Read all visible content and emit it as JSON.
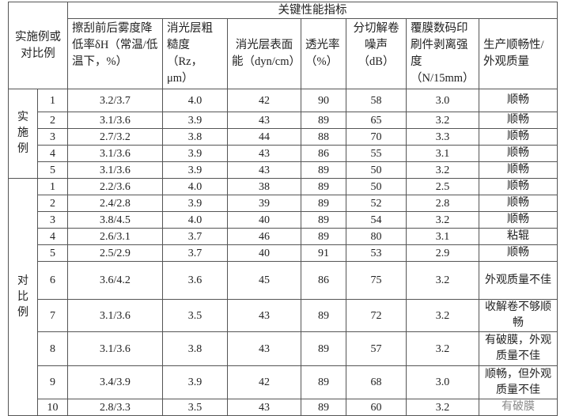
{
  "table": {
    "corner_header": "实施例或对比例",
    "group_header": "关键性能指标",
    "columns": [
      "擦刮前后雾度降低率δH（常温/低温下，%）",
      "消光层粗糙度（Rz，μm）",
      "消光层表面能（dyn/cm）",
      "透光率（%）",
      "分切解卷噪声（dB）",
      "覆膜数码印刷件剥离强度（N/15mm）",
      "生产顺畅性/外观质量"
    ],
    "groups": [
      {
        "label": "实施例",
        "rows": [
          {
            "no": "1",
            "haze": "3.2/3.7",
            "rz": "4.0",
            "energy": "42",
            "trans": "90",
            "noise": "58",
            "peel": "3.0",
            "quality": "顺畅"
          },
          {
            "no": "2",
            "haze": "3.1/3.6",
            "rz": "3.9",
            "energy": "43",
            "trans": "89",
            "noise": "65",
            "peel": "3.2",
            "quality": "顺畅"
          },
          {
            "no": "3",
            "haze": "2.7/3.2",
            "rz": "3.8",
            "energy": "44",
            "trans": "88",
            "noise": "70",
            "peel": "3.3",
            "quality": "顺畅"
          },
          {
            "no": "4",
            "haze": "3.1/3.6",
            "rz": "3.9",
            "energy": "43",
            "trans": "86",
            "noise": "55",
            "peel": "3.1",
            "quality": "顺畅"
          },
          {
            "no": "5",
            "haze": "3.1/3.6",
            "rz": "3.9",
            "energy": "43",
            "trans": "89",
            "noise": "50",
            "peel": "3.2",
            "quality": "顺畅"
          }
        ]
      },
      {
        "label": "对比例",
        "rows": [
          {
            "no": "1",
            "haze": "2.2/3.6",
            "rz": "4.0",
            "energy": "38",
            "trans": "89",
            "noise": "50",
            "peel": "2.5",
            "quality": "顺畅"
          },
          {
            "no": "2",
            "haze": "2.4/2.8",
            "rz": "3.9",
            "energy": "39",
            "trans": "89",
            "noise": "52",
            "peel": "2.8",
            "quality": "顺畅"
          },
          {
            "no": "3",
            "haze": "3.8/4.5",
            "rz": "4.0",
            "energy": "40",
            "trans": "89",
            "noise": "54",
            "peel": "3.2",
            "quality": "顺畅"
          },
          {
            "no": "4",
            "haze": "2.6/3.1",
            "rz": "3.7",
            "energy": "46",
            "trans": "89",
            "noise": "80",
            "peel": "3.1",
            "quality": "粘辊"
          },
          {
            "no": "5",
            "haze": "2.5/2.9",
            "rz": "3.7",
            "energy": "40",
            "trans": "91",
            "noise": "53",
            "peel": "2.9",
            "quality": "顺畅"
          },
          {
            "no": "6",
            "haze": "3.6/4.2",
            "rz": "3.6",
            "energy": "45",
            "trans": "86",
            "noise": "75",
            "peel": "3.2",
            "quality": "外观质量不佳"
          },
          {
            "no": "7",
            "haze": "3.1/3.6",
            "rz": "3.5",
            "energy": "43",
            "trans": "89",
            "noise": "72",
            "peel": "3.2",
            "quality": "收解卷不够顺畅"
          },
          {
            "no": "8",
            "haze": "3.1/3.6",
            "rz": "3.8",
            "energy": "43",
            "trans": "89",
            "noise": "57",
            "peel": "3.2",
            "quality": "有破膜，外观质量不佳"
          },
          {
            "no": "9",
            "haze": "3.4/3.9",
            "rz": "3.9",
            "energy": "42",
            "trans": "89",
            "noise": "68",
            "peel": "3.0",
            "quality": "顺畅，但外观质量不佳"
          },
          {
            "no": "10",
            "haze": "2.8/3.3",
            "rz": "3.5",
            "energy": "43",
            "trans": "89",
            "noise": "60",
            "peel": "3.2",
            "quality": "有破膜"
          }
        ]
      }
    ]
  }
}
